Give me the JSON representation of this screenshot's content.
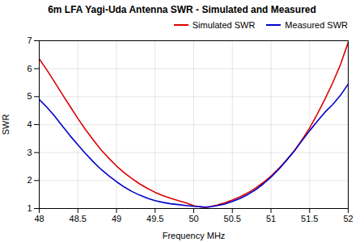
{
  "chart_data": {
    "type": "line",
    "title": "6m LFA Yagi-Uda Antenna SWR - Simulated and Measured",
    "xlabel": "Frequency MHz",
    "ylabel": "SWR",
    "x": [
      48.0,
      48.1,
      48.2,
      48.3,
      48.4,
      48.5,
      48.6,
      48.7,
      48.8,
      48.9,
      49.0,
      49.1,
      49.2,
      49.3,
      49.4,
      49.5,
      49.6,
      49.7,
      49.8,
      49.9,
      50.0,
      50.05,
      50.1,
      50.15,
      50.2,
      50.3,
      50.4,
      50.5,
      50.6,
      50.7,
      50.8,
      50.9,
      51.0,
      51.1,
      51.2,
      51.3,
      51.4,
      51.5,
      51.6,
      51.7,
      51.8,
      51.9,
      52.0
    ],
    "series": [
      {
        "name": "Simulated SWR",
        "color": "#dd0000",
        "values": [
          6.35,
          5.95,
          5.52,
          5.08,
          4.65,
          4.22,
          3.82,
          3.45,
          3.1,
          2.8,
          2.52,
          2.28,
          2.07,
          1.88,
          1.72,
          1.58,
          1.46,
          1.37,
          1.28,
          1.2,
          1.1,
          1.07,
          1.05,
          1.04,
          1.06,
          1.12,
          1.2,
          1.3,
          1.42,
          1.56,
          1.73,
          1.93,
          2.16,
          2.43,
          2.73,
          3.06,
          3.45,
          3.88,
          4.38,
          4.92,
          5.5,
          6.15,
          6.95
        ]
      },
      {
        "name": "Measured SWR",
        "color": "#0000cc",
        "values": [
          4.9,
          4.62,
          4.3,
          3.95,
          3.6,
          3.28,
          2.96,
          2.67,
          2.4,
          2.17,
          1.96,
          1.77,
          1.61,
          1.48,
          1.37,
          1.28,
          1.22,
          1.17,
          1.14,
          1.11,
          1.08,
          1.07,
          1.06,
          1.05,
          1.06,
          1.1,
          1.16,
          1.25,
          1.36,
          1.5,
          1.67,
          1.88,
          2.12,
          2.4,
          2.72,
          3.05,
          3.42,
          3.78,
          4.12,
          4.45,
          4.72,
          5.05,
          5.45
        ]
      }
    ],
    "xlim": [
      48,
      52
    ],
    "ylim": [
      1,
      7
    ],
    "xticks": [
      48,
      48.5,
      49,
      49.5,
      50,
      50.5,
      51,
      51.5,
      52
    ],
    "yticks": [
      1,
      2,
      3,
      4,
      5,
      6,
      7
    ],
    "grid": true,
    "legend": "upper right"
  }
}
